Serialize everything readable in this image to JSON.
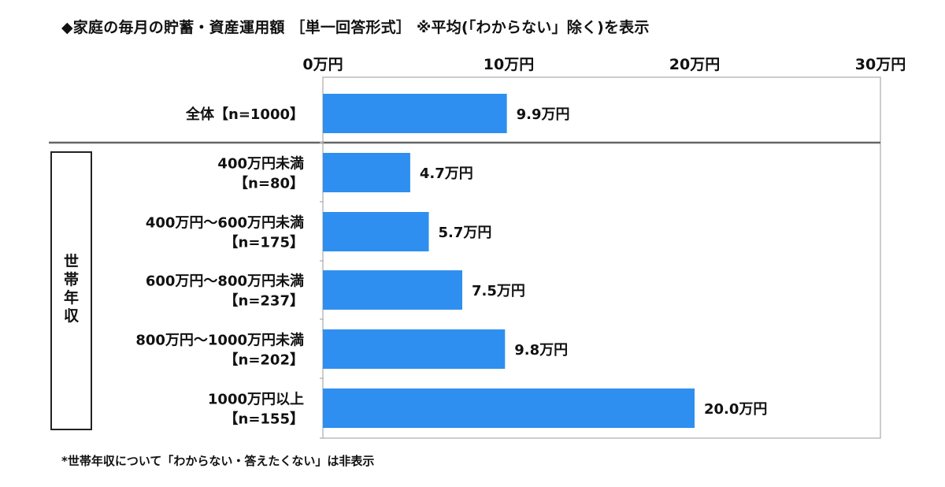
{
  "chart_data": {
    "type": "bar",
    "orientation": "horizontal",
    "title": "◆家庭の毎月の貯蓄・資産運用額 ［単一回答形式］ ※平均(「わからない」除く)を表示",
    "footnote": "*世帯年収について「わからない・答えたくない」は非表示",
    "xlim": [
      0,
      30
    ],
    "x_ticks": [
      {
        "value": 0,
        "label": "0万円"
      },
      {
        "value": 10,
        "label": "10万円"
      },
      {
        "value": 20,
        "label": "20万円"
      },
      {
        "value": 30,
        "label": "30万円"
      }
    ],
    "group_label": "世帯年収",
    "colors": {
      "bar": "#2f8ff0",
      "frame": "#bbbbbb",
      "divider": "#666666"
    },
    "categories": [
      {
        "label_lines": [
          "全体【n=1000】"
        ],
        "value": 9.9,
        "value_label": "9.9万円",
        "group": "overall"
      },
      {
        "label_lines": [
          "400万円未満",
          "【n=80】"
        ],
        "value": 4.7,
        "value_label": "4.7万円",
        "group": "income"
      },
      {
        "label_lines": [
          "400万円～600万円未満",
          "【n=175】"
        ],
        "value": 5.7,
        "value_label": "5.7万円",
        "group": "income"
      },
      {
        "label_lines": [
          "600万円～800万円未満",
          "【n=237】"
        ],
        "value": 7.5,
        "value_label": "7.5万円",
        "group": "income"
      },
      {
        "label_lines": [
          "800万円～1000万円未満",
          "【n=202】"
        ],
        "value": 9.8,
        "value_label": "9.8万円",
        "group": "income"
      },
      {
        "label_lines": [
          "1000万円以上",
          "【n=155】"
        ],
        "value": 20.0,
        "value_label": "20.0万円",
        "group": "income"
      }
    ]
  }
}
